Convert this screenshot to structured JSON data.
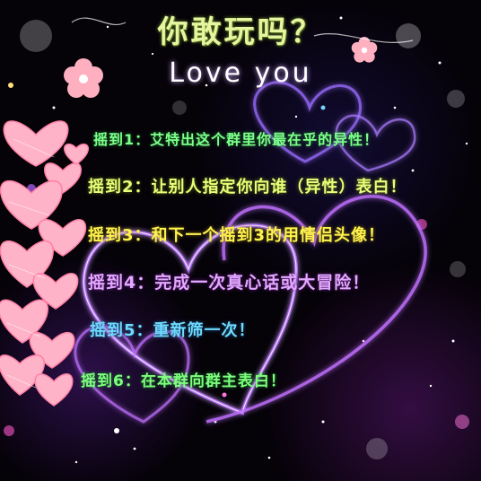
{
  "header": {
    "title": "你敢玩吗？",
    "subtitle": "Love you"
  },
  "rules": [
    "摇到1：艾特出这个群里你最在乎的异性！",
    "摇到2：让别人指定你向谁（异性）表白！",
    "摇到3：和下一个摇到3的用情侣头像！",
    "摇到4：完成一次真心话或大冒险！",
    "摇到5：重新筛一次！",
    "摇到6：在本群向群主表白！"
  ],
  "colors": {
    "background": "#050208",
    "title": "#e8f5a0",
    "neon_heart": "#b86cff",
    "pink_heart": "#ffb3c8",
    "flower": "#ffb0c0"
  },
  "decorations": {
    "icons": [
      "neon-heart-icon",
      "pink-heart-icon",
      "flower-icon",
      "sparkle-icon"
    ]
  }
}
